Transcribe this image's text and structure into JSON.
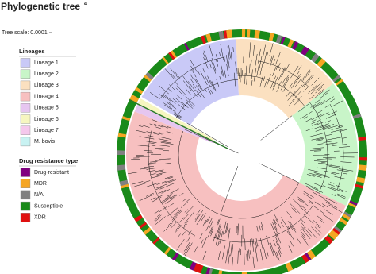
{
  "header": {
    "title": "Phylogenetic tree",
    "superscript": "a",
    "tree_scale": "Tree scale: 0.0001"
  },
  "legends": [
    {
      "title": "Lineages",
      "items": [
        {
          "label": "Lineage 1",
          "color": "#c9c9f7"
        },
        {
          "label": "Lineage 2",
          "color": "#c8f5c8"
        },
        {
          "label": "Lineage 3",
          "color": "#fbe0c0"
        },
        {
          "label": "Lineage 4",
          "color": "#f7c0c0"
        },
        {
          "label": "Lineage 5",
          "color": "#e6c6f0"
        },
        {
          "label": "Lineage 6",
          "color": "#f6f6c0"
        },
        {
          "label": "Lineage 7",
          "color": "#f5c8ec"
        },
        {
          "label": "M. bovis",
          "color": "#c8f2f2"
        }
      ]
    },
    {
      "title": "Drug resistance type",
      "items": [
        {
          "label": "Drug-resistant",
          "color": "#800080"
        },
        {
          "label": "MDR",
          "color": "#f5a623"
        },
        {
          "label": "N/A",
          "color": "#808080"
        },
        {
          "label": "Susceptible",
          "color": "#1a8a1a"
        },
        {
          "label": "XDR",
          "color": "#e01010"
        }
      ]
    }
  ]
}
